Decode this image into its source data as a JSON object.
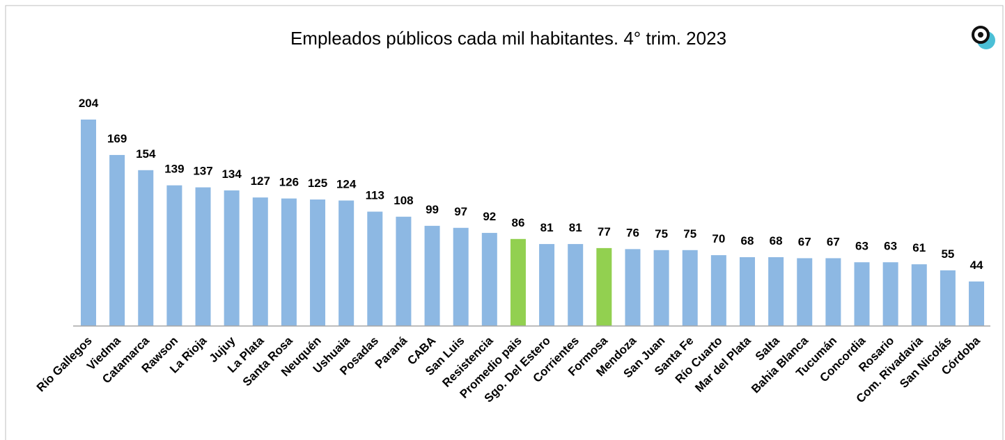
{
  "chart_data": {
    "type": "bar",
    "title": "Empleados públicos cada mil habitantes. 4° trim. 2023",
    "categories": [
      "Río Gallegos",
      "Viedma",
      "Catamarca",
      "Rawson",
      "La Rioja",
      "Jujuy",
      "La Plata",
      "Santa Rosa",
      "Neuquén",
      "Ushuaia",
      "Posadas",
      "Paraná",
      "CABA",
      "San Luis",
      "Resistencia",
      "Promedio pais",
      "Sgo. Del Estero",
      "Corrientes",
      "Formosa",
      "Mendoza",
      "San Juan",
      "Santa Fe",
      "Río Cuarto",
      "Mar del Plata",
      "Salta",
      "Bahia Blanca",
      "Tucumán",
      "Concordia",
      "Rosario",
      "Com. Rivadavia",
      "San Nicolás",
      "Córdoba"
    ],
    "values": [
      204,
      169,
      154,
      139,
      137,
      134,
      127,
      126,
      125,
      124,
      113,
      108,
      99,
      97,
      92,
      86,
      81,
      81,
      77,
      76,
      75,
      75,
      70,
      68,
      68,
      67,
      67,
      63,
      63,
      61,
      55,
      44
    ],
    "colors": [
      "#8db8e3",
      "#8db8e3",
      "#8db8e3",
      "#8db8e3",
      "#8db8e3",
      "#8db8e3",
      "#8db8e3",
      "#8db8e3",
      "#8db8e3",
      "#8db8e3",
      "#8db8e3",
      "#8db8e3",
      "#8db8e3",
      "#8db8e3",
      "#8db8e3",
      "#92d050",
      "#8db8e3",
      "#8db8e3",
      "#92d050",
      "#8db8e3",
      "#8db8e3",
      "#8db8e3",
      "#8db8e3",
      "#8db8e3",
      "#8db8e3",
      "#8db8e3",
      "#8db8e3",
      "#8db8e3",
      "#8db8e3",
      "#8db8e3",
      "#8db8e3",
      "#8db8e3"
    ]
  }
}
